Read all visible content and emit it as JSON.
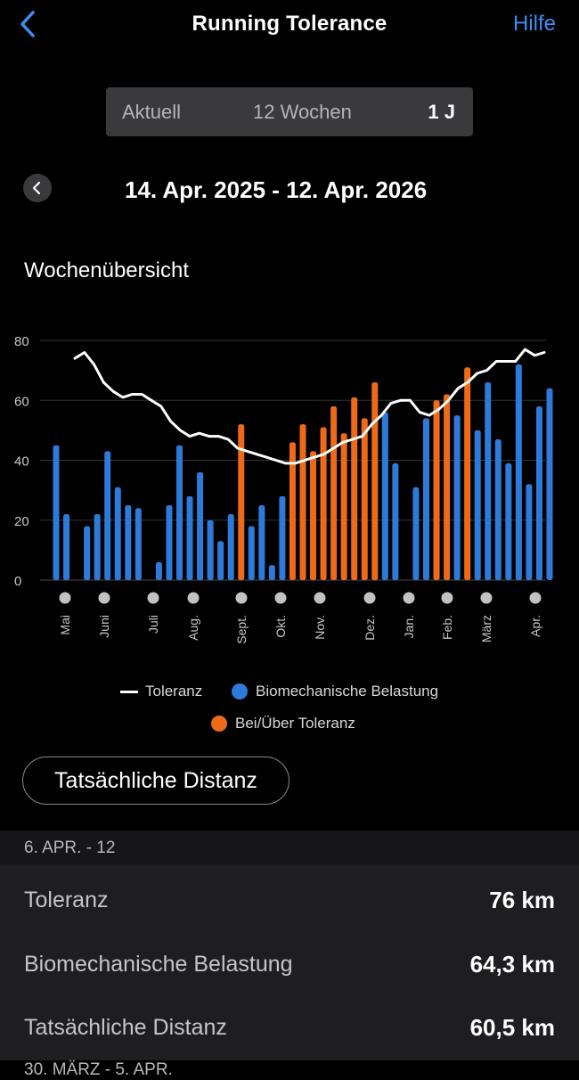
{
  "header": {
    "title": "Running Tolerance",
    "help_label": "Hilfe"
  },
  "segments": {
    "items": [
      "Aktuell",
      "12 Wochen",
      "1 J"
    ],
    "selected": "1 J"
  },
  "date_range": "14. Apr. 2025 - 12. Apr. 2026",
  "section_title": "Wochenübersicht",
  "colors": {
    "accent": "#3d8ef0",
    "blue_bar": "#2e7ad9",
    "orange_bar": "#ee6a18",
    "line": "#ffffff"
  },
  "chart_data": {
    "type": "bar",
    "title": "Wochenübersicht",
    "ylim": [
      0,
      80
    ],
    "yticks": [
      0,
      20,
      40,
      60,
      80
    ],
    "x_labels": [
      "Mai",
      "Juni",
      "Juli",
      "Aug.",
      "Sept.",
      "Okt.",
      "Nov.",
      "Dez.",
      "Jan.",
      "Feb.",
      "März",
      "Apr."
    ],
    "series": [
      {
        "name": "Biomechanische Belastung",
        "values": [
          45,
          22,
          0,
          18,
          22,
          43,
          31,
          25,
          24,
          0,
          6,
          25,
          45,
          28,
          36,
          20,
          13,
          22,
          52,
          18,
          25,
          5,
          28,
          46,
          52,
          43,
          51,
          58,
          49,
          61,
          54,
          66,
          56,
          39,
          0,
          31,
          54,
          60,
          62,
          55,
          71,
          50,
          66,
          47,
          39,
          72,
          32,
          58,
          64
        ],
        "flags": [
          0,
          0,
          0,
          0,
          0,
          0,
          0,
          0,
          0,
          0,
          0,
          0,
          0,
          0,
          0,
          0,
          0,
          0,
          1,
          0,
          0,
          0,
          0,
          1,
          1,
          1,
          1,
          1,
          1,
          1,
          1,
          1,
          0,
          0,
          0,
          0,
          0,
          1,
          1,
          0,
          1,
          0,
          0,
          0,
          0,
          0,
          0,
          0,
          0
        ]
      },
      {
        "name": "Toleranz",
        "values": [
          74,
          76,
          72,
          66,
          63,
          61,
          62,
          62,
          60,
          58,
          53,
          50,
          48,
          49,
          48,
          48,
          47,
          44,
          43,
          42,
          41,
          40,
          39,
          39,
          40,
          41,
          42,
          44,
          46,
          47,
          48,
          52,
          55,
          59,
          60,
          60,
          56,
          55,
          57,
          60,
          64,
          66,
          69,
          70,
          73,
          73,
          73,
          77,
          75,
          76
        ]
      }
    ]
  },
  "legend": {
    "line": "Toleranz",
    "blue": "Biomechanische Belastung",
    "orange": "Bei/Über Toleranz"
  },
  "distance_button": "Tatsächliche Distanz",
  "week": {
    "header": "6. APR. - 12",
    "rows": [
      {
        "label": "Toleranz",
        "value": "76 km"
      },
      {
        "label": "Biomechanische Belastung",
        "value": "64,3 km"
      },
      {
        "label": "Tatsächliche Distanz",
        "value": "60,5 km"
      }
    ]
  },
  "next_week_header": "30. MÄRZ - 5. APR."
}
